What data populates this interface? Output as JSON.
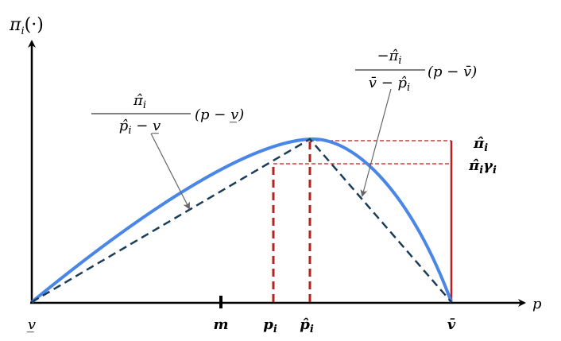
{
  "y_axis_label": {
    "symbol": "π",
    "subscript": "i",
    "suffix": "(·)"
  },
  "x_axis_label": "p",
  "x_labels": [
    {
      "symbol": "v̲"
    },
    {
      "symbol": "m"
    },
    {
      "symbol": "p",
      "subscript": "i"
    },
    {
      "symbol": "p̂",
      "subscript": "i"
    },
    {
      "symbol": "v̄"
    }
  ],
  "left_formula": {
    "numerator": {
      "symbol": "π̂",
      "subscript": "i"
    },
    "denominator": {
      "symbol": "p̂",
      "subscript": "i",
      "suffix": " − v̲"
    },
    "factor": "(p − v̲)"
  },
  "right_formula": {
    "numerator": {
      "symbol": "−π̂",
      "subscript": "i"
    },
    "denominator": {
      "prefix": "v̄ − ",
      "symbol": "p̂",
      "subscript": "i"
    },
    "factor": "(p − v̄)"
  },
  "right_labels": [
    {
      "symbol": "π̂",
      "subscript": "i"
    },
    {
      "symbol": "π̂",
      "subscript": "i",
      "symbol2": "γ",
      "subscript2": "i"
    }
  ]
}
